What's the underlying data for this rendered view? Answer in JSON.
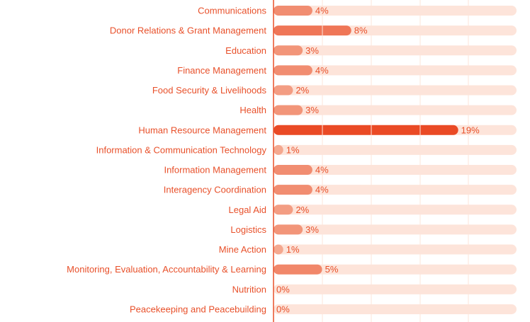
{
  "colors": {
    "text": "#e8502a",
    "track": "#fde4da",
    "axis": "#e8502a",
    "grid": "#ffffff",
    "bar_scale_light": "#f7bfa9",
    "bar_scale_dark": "#ea4a25"
  },
  "chart_data": {
    "type": "bar",
    "orientation": "horizontal",
    "categories": [
      "Communications",
      "Donor Relations & Grant Management",
      "Education",
      "Finance Management",
      "Food Security & Livelihoods",
      "Health",
      "Human Resource Management",
      "Information & Communication Technology",
      "Information Management",
      "Interagency Coordination",
      "Legal Aid",
      "Logistics",
      "Mine Action",
      "Monitoring, Evaluation, Accountability & Learning",
      "Nutrition",
      "Peacekeeping and Peacebuilding"
    ],
    "values": [
      4,
      8,
      3,
      4,
      2,
      3,
      19,
      1,
      4,
      4,
      2,
      3,
      1,
      5,
      0,
      0
    ],
    "value_labels": [
      "4%",
      "8%",
      "3%",
      "4%",
      "2%",
      "3%",
      "19%",
      "1%",
      "4%",
      "4%",
      "2%",
      "3%",
      "1%",
      "5%",
      "0%",
      "0%"
    ],
    "unit": "%",
    "xlim": [
      0,
      25
    ],
    "grid": true,
    "legend": "none",
    "title": "",
    "xlabel": "",
    "ylabel": ""
  }
}
